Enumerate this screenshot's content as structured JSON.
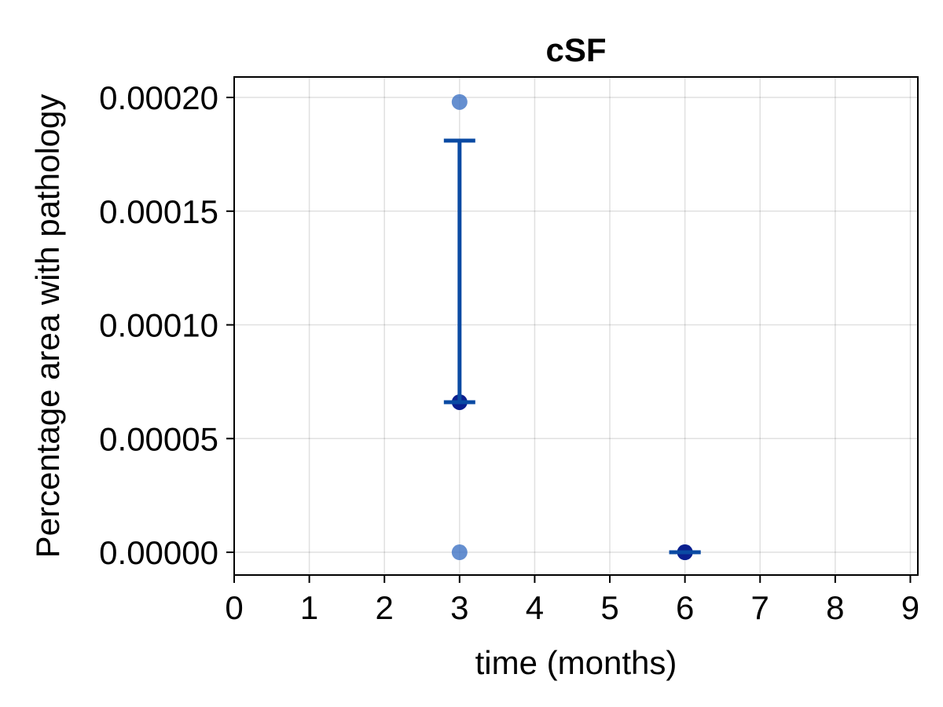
{
  "chart_data": {
    "type": "scatter",
    "title": "cSF",
    "xlabel": "time (months)",
    "ylabel": "Percentage area with pathology",
    "xlim": [
      0,
      9.1
    ],
    "ylim": [
      -1e-05,
      0.000209
    ],
    "xticks": [
      0,
      1,
      2,
      3,
      4,
      5,
      6,
      7,
      8,
      9
    ],
    "xtick_labels": [
      "0",
      "1",
      "2",
      "3",
      "4",
      "5",
      "6",
      "7",
      "8",
      "9"
    ],
    "yticks": [
      0,
      5e-05,
      0.0001,
      0.00015,
      0.0002
    ],
    "ytick_labels": [
      "0.00000",
      "0.00005",
      "0.00010",
      "0.00015",
      "0.00020"
    ],
    "grid": true,
    "points": [
      {
        "x": 3,
        "y": 0.000198
      },
      {
        "x": 3,
        "y": 0.0
      },
      {
        "x": 6,
        "y": 0.0
      },
      {
        "x": 6,
        "y": 0.0
      }
    ],
    "means": [
      {
        "x": 3,
        "y": 6.6e-05
      },
      {
        "x": 6,
        "y": 0.0
      }
    ],
    "error_bars": [
      {
        "x": 3,
        "low": 6.6e-05,
        "high": 0.000181
      },
      {
        "x": 6,
        "low": 0.0,
        "high": 0.0
      }
    ],
    "colors": {
      "points": "#3f73c4",
      "mean": "#0a1f8f",
      "error_bar": "#0a4aa3"
    }
  }
}
